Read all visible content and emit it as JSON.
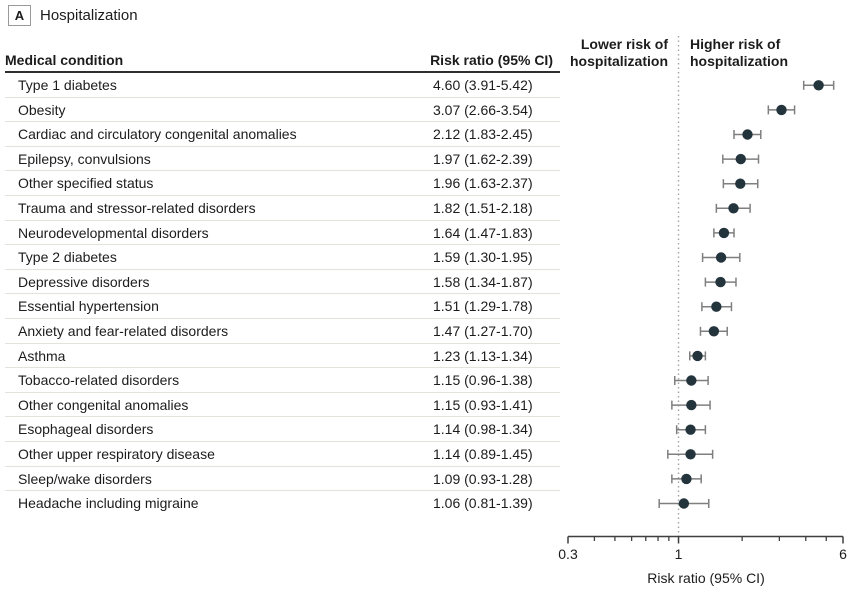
{
  "panel": {
    "label": "A",
    "title": "Hospitalization"
  },
  "table": {
    "condition_header": "Medical condition",
    "value_header": "Risk ratio (95% CI)"
  },
  "plot": {
    "lower_label_line1": "Lower risk of",
    "lower_label_line2": "hospitalization",
    "higher_label_line1": "Higher risk of",
    "higher_label_line2": "hospitalization",
    "axis_label": "Risk ratio (95% CI)"
  },
  "colors": {
    "dot": "#24343d",
    "whisker": "#7f7f7f",
    "reference_line": "#a3a3a3",
    "axis": "#3f3f3f",
    "row_border": "#e5e2da",
    "text": "#1c1c1c"
  },
  "chart_data": {
    "type": "forest",
    "title": "A Hospitalization",
    "xlabel": "Risk ratio (95% CI)",
    "xscale": "log",
    "xlim": [
      0.3,
      6
    ],
    "reference_value": 1,
    "major_ticks": [
      {
        "value": 0.3,
        "label": "0.3"
      },
      {
        "value": 1,
        "label": "1"
      },
      {
        "value": 6,
        "label": "6"
      }
    ],
    "minor_ticks": [
      0.4,
      0.5,
      0.6,
      0.7,
      0.8,
      0.9,
      2,
      3,
      4,
      5
    ],
    "rows": [
      {
        "condition": "Type 1 diabetes",
        "label": "4.60 (3.91-5.42)",
        "rr": 4.6,
        "lo": 3.91,
        "hi": 5.42
      },
      {
        "condition": "Obesity",
        "label": "3.07 (2.66-3.54)",
        "rr": 3.07,
        "lo": 2.66,
        "hi": 3.54
      },
      {
        "condition": "Cardiac and circulatory congenital anomalies",
        "label": "2.12 (1.83-2.45)",
        "rr": 2.12,
        "lo": 1.83,
        "hi": 2.45
      },
      {
        "condition": "Epilepsy, convulsions",
        "label": "1.97 (1.62-2.39)",
        "rr": 1.97,
        "lo": 1.62,
        "hi": 2.39
      },
      {
        "condition": "Other specified status",
        "label": "1.96 (1.63-2.37)",
        "rr": 1.96,
        "lo": 1.63,
        "hi": 2.37
      },
      {
        "condition": "Trauma and stressor-related disorders",
        "label": "1.82 (1.51-2.18)",
        "rr": 1.82,
        "lo": 1.51,
        "hi": 2.18
      },
      {
        "condition": "Neurodevelopmental disorders",
        "label": "1.64 (1.47-1.83)",
        "rr": 1.64,
        "lo": 1.47,
        "hi": 1.83
      },
      {
        "condition": "Type 2 diabetes",
        "label": "1.59 (1.30-1.95)",
        "rr": 1.59,
        "lo": 1.3,
        "hi": 1.95
      },
      {
        "condition": "Depressive disorders",
        "label": "1.58 (1.34-1.87)",
        "rr": 1.58,
        "lo": 1.34,
        "hi": 1.87
      },
      {
        "condition": "Essential hypertension",
        "label": "1.51 (1.29-1.78)",
        "rr": 1.51,
        "lo": 1.29,
        "hi": 1.78
      },
      {
        "condition": "Anxiety and fear-related disorders",
        "label": "1.47 (1.27-1.70)",
        "rr": 1.47,
        "lo": 1.27,
        "hi": 1.7
      },
      {
        "condition": "Asthma",
        "label": "1.23 (1.13-1.34)",
        "rr": 1.23,
        "lo": 1.13,
        "hi": 1.34
      },
      {
        "condition": "Tobacco-related disorders",
        "label": "1.15 (0.96-1.38)",
        "rr": 1.15,
        "lo": 0.96,
        "hi": 1.38
      },
      {
        "condition": "Other congenital anomalies",
        "label": "1.15 (0.93-1.41)",
        "rr": 1.15,
        "lo": 0.93,
        "hi": 1.41
      },
      {
        "condition": "Esophageal disorders",
        "label": "1.14 (0.98-1.34)",
        "rr": 1.14,
        "lo": 0.98,
        "hi": 1.34
      },
      {
        "condition": "Other upper respiratory disease",
        "label": "1.14 (0.89-1.45)",
        "rr": 1.14,
        "lo": 0.89,
        "hi": 1.45
      },
      {
        "condition": "Sleep/wake disorders",
        "label": "1.09 (0.93-1.28)",
        "rr": 1.09,
        "lo": 0.93,
        "hi": 1.28
      },
      {
        "condition": "Headache including migraine",
        "label": "1.06 (0.81-1.39)",
        "rr": 1.06,
        "lo": 0.81,
        "hi": 1.39
      }
    ]
  }
}
